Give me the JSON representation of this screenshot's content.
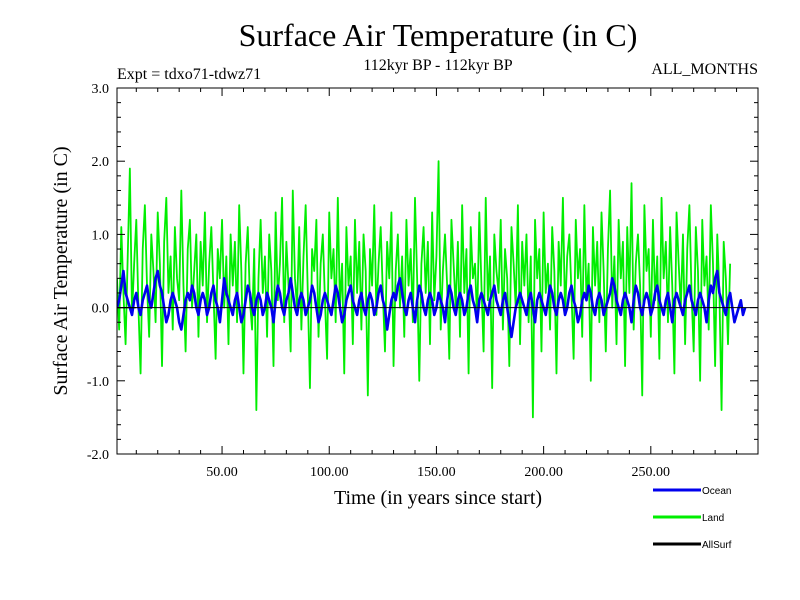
{
  "chart_data": {
    "type": "line",
    "title": "Surface Air Temperature (in C)",
    "subtitle_left": "Expt = tdxo71-tdwz71",
    "subtitle_center": "112kyr BP - 112kyr BP",
    "subtitle_right": "ALL_MONTHS",
    "xlabel": "Time (in years since start)",
    "ylabel": "Surface Air Temperature (in C)",
    "xlim": [
      1,
      300
    ],
    "ylim": [
      -2.0,
      3.0
    ],
    "x_ticks": [
      50,
      100,
      150,
      200,
      250
    ],
    "x_tick_labels": [
      "50.00",
      "100.00",
      "150.00",
      "200.00",
      "250.00"
    ],
    "y_ticks": [
      -2.0,
      -1.0,
      0.0,
      1.0,
      2.0,
      3.0
    ],
    "y_tick_labels": [
      "-2.0",
      "-1.0",
      "0.0",
      "1.0",
      "2.0",
      "3.0"
    ],
    "zero_line": 0.0,
    "series": [
      {
        "name": "Land",
        "color": "#00ee00",
        "x_start": 1,
        "x_step": 1,
        "values": [
          0.4,
          -0.3,
          1.1,
          0.2,
          -0.5,
          0.7,
          1.9,
          -0.1,
          0.6,
          1.2,
          0.0,
          -0.9,
          0.8,
          1.4,
          0.3,
          -0.4,
          1.0,
          0.5,
          -0.2,
          1.3,
          0.6,
          -0.8,
          0.9,
          1.5,
          0.2,
          0.7,
          -0.3,
          1.1,
          0.4,
          0.1,
          1.6,
          0.3,
          -0.6,
          0.8,
          1.2,
          0.0,
          0.5,
          1.0,
          -0.4,
          0.9,
          0.3,
          1.3,
          -0.2,
          0.6,
          1.1,
          0.2,
          -0.7,
          0.8,
          0.4,
          1.2,
          0.0,
          0.7,
          -0.5,
          1.0,
          0.3,
          0.9,
          -0.2,
          1.4,
          0.5,
          -0.9,
          0.6,
          1.1,
          0.1,
          -0.3,
          0.8,
          -1.4,
          0.4,
          1.2,
          0.2,
          0.7,
          -0.4,
          1.0,
          0.5,
          -0.8,
          1.3,
          0.1,
          0.6,
          1.5,
          -0.2,
          0.9,
          0.3,
          -0.6,
          1.6,
          0.4,
          0.0,
          1.1,
          -0.3,
          0.7,
          1.4,
          0.2,
          -1.1,
          0.8,
          0.5,
          1.2,
          -0.4,
          0.6,
          1.0,
          0.1,
          -0.7,
          1.3,
          0.4,
          0.8,
          -0.2,
          1.5,
          0.0,
          0.6,
          -0.9,
          1.1,
          0.3,
          0.7,
          -0.5,
          1.2,
          0.2,
          0.9,
          -0.3,
          1.0,
          0.5,
          -1.2,
          0.8,
          0.3,
          1.4,
          -0.1,
          0.6,
          1.1,
          0.2,
          -0.6,
          0.9,
          0.4,
          1.3,
          -0.8,
          0.5,
          1.0,
          0.0,
          0.7,
          -0.4,
          1.2,
          0.3,
          0.8,
          -0.2,
          1.5,
          0.4,
          -1.0,
          0.6,
          1.1,
          0.2,
          0.9,
          -0.5,
          1.3,
          0.1,
          0.7,
          2.0,
          -0.3,
          0.5,
          1.0,
          0.3,
          -0.7,
          1.2,
          0.6,
          0.0,
          0.9,
          -0.4,
          1.4,
          0.2,
          0.8,
          -0.9,
          1.1,
          0.4,
          0.6,
          -0.2,
          1.3,
          0.3,
          -0.6,
          1.5,
          0.1,
          0.7,
          -1.1,
          1.0,
          0.5,
          0.2,
          1.2,
          -0.3,
          0.8,
          0.4,
          -0.8,
          1.1,
          0.6,
          0.0,
          1.4,
          -0.5,
          0.9,
          0.3,
          1.0,
          -0.2,
          0.7,
          -1.5,
          1.2,
          0.4,
          0.8,
          -0.6,
          1.3,
          0.2,
          0.6,
          -0.3,
          1.1,
          0.5,
          -0.9,
          0.9,
          0.3,
          1.5,
          -0.1,
          0.7,
          1.0,
          0.2,
          -0.7,
          1.2,
          0.4,
          0.8,
          -0.4,
          1.4,
          0.1,
          0.6,
          -1.0,
          1.1,
          0.3,
          0.9,
          -0.2,
          1.3,
          0.5,
          -0.6,
          0.8,
          1.6,
          0.0,
          0.7,
          -0.5,
          1.2,
          0.4,
          0.9,
          -0.8,
          1.1,
          0.2,
          1.7,
          -0.3,
          0.6,
          1.0,
          0.3,
          -1.2,
          1.4,
          0.5,
          0.8,
          -0.4,
          1.2,
          0.1,
          0.7,
          -0.7,
          1.5,
          0.4,
          0.9,
          -0.2,
          1.1,
          0.3,
          -0.9,
          1.3,
          0.6,
          0.0,
          1.0,
          -0.5,
          0.8,
          1.4,
          0.2,
          -0.6,
          1.1,
          0.5,
          -1.0,
          1.2,
          0.3,
          0.7,
          -0.3,
          1.4,
          0.6,
          -0.8,
          1.0,
          0.2,
          -1.4,
          0.9,
          0.4,
          -0.5,
          0.6
        ]
      },
      {
        "name": "Ocean",
        "color": "#0000ee",
        "x_start": 1,
        "x_step": 1,
        "values": [
          0.0,
          0.1,
          0.3,
          0.5,
          0.2,
          0.1,
          0.0,
          -0.1,
          0.1,
          0.2,
          0.0,
          -0.1,
          0.1,
          0.2,
          0.3,
          0.1,
          0.0,
          0.2,
          0.4,
          0.5,
          0.3,
          0.2,
          0.0,
          -0.2,
          -0.1,
          0.1,
          0.2,
          0.1,
          0.0,
          -0.2,
          -0.3,
          -0.1,
          0.1,
          0.2,
          0.1,
          0.3,
          0.2,
          0.0,
          -0.1,
          0.1,
          0.2,
          0.1,
          -0.1,
          0.0,
          0.2,
          0.3,
          0.1,
          0.0,
          -0.2,
          0.1,
          0.4,
          0.2,
          0.1,
          0.0,
          -0.1,
          0.1,
          0.2,
          0.0,
          -0.2,
          -0.1,
          0.1,
          0.3,
          0.2,
          0.0,
          -0.1,
          0.1,
          0.2,
          0.1,
          -0.1,
          0.0,
          0.2,
          0.1,
          0.0,
          -0.2,
          0.1,
          0.3,
          0.2,
          0.0,
          -0.1,
          0.1,
          0.2,
          0.4,
          0.2,
          0.0,
          -0.1,
          0.1,
          0.2,
          0.1,
          -0.1,
          0.0,
          0.1,
          0.3,
          0.2,
          0.0,
          -0.2,
          -0.1,
          0.1,
          0.2,
          0.1,
          0.0,
          -0.1,
          0.1,
          0.3,
          0.2,
          0.0,
          -0.2,
          -0.1,
          0.1,
          0.2,
          0.3,
          0.1,
          0.0,
          -0.1,
          0.1,
          0.2,
          0.0,
          -0.1,
          0.1,
          0.2,
          0.1,
          -0.1,
          0.0,
          0.2,
          0.3,
          0.1,
          0.0,
          -0.3,
          -0.1,
          0.1,
          0.2,
          0.1,
          0.3,
          0.4,
          0.2,
          0.0,
          -0.1,
          0.1,
          0.2,
          0.0,
          -0.2,
          0.1,
          0.3,
          0.2,
          0.0,
          -0.1,
          0.1,
          0.2,
          0.1,
          -0.1,
          0.0,
          0.2,
          0.1,
          0.0,
          -0.2,
          0.1,
          0.3,
          0.2,
          0.0,
          -0.1,
          0.1,
          0.2,
          0.1,
          -0.1,
          0.0,
          0.2,
          0.3,
          0.1,
          0.0,
          -0.2,
          0.1,
          0.2,
          0.1,
          0.0,
          -0.1,
          0.1,
          0.2,
          0.3,
          0.1,
          0.0,
          -0.1,
          0.1,
          0.2,
          0.0,
          -0.2,
          -0.4,
          -0.2,
          0.0,
          0.1,
          0.2,
          0.1,
          0.0,
          -0.1,
          0.1,
          0.2,
          0.0,
          -0.2,
          0.1,
          0.2,
          0.1,
          0.0,
          -0.1,
          0.1,
          0.3,
          0.2,
          0.0,
          -0.1,
          0.1,
          0.2,
          0.1,
          -0.1,
          0.0,
          0.2,
          0.3,
          0.1,
          0.0,
          -0.2,
          -0.1,
          0.1,
          0.2,
          0.1,
          0.3,
          0.2,
          0.0,
          -0.1,
          0.1,
          0.2,
          0.1,
          -0.1,
          0.0,
          0.1,
          0.2,
          0.4,
          0.3,
          0.1,
          0.0,
          -0.1,
          0.1,
          0.2,
          0.1,
          0.0,
          -0.2,
          0.1,
          0.3,
          0.2,
          0.0,
          -0.1,
          0.1,
          0.2,
          0.1,
          -0.1,
          0.0,
          0.2,
          0.3,
          0.1,
          0.0,
          -0.1,
          0.1,
          0.2,
          0.0,
          -0.2,
          0.1,
          0.2,
          0.1,
          0.0,
          -0.1,
          0.1,
          0.2,
          0.3,
          0.1,
          0.0,
          -0.1,
          0.1,
          0.2,
          0.1,
          0.0,
          -0.2,
          0.1,
          0.3,
          0.2,
          0.4,
          0.5,
          0.2,
          0.1,
          0.0,
          -0.1,
          0.1,
          0.2,
          0.0,
          -0.2,
          -0.1,
          0.0,
          0.1,
          -0.1,
          0.0
        ]
      },
      {
        "name": "AllSurf",
        "color": "#000000",
        "x_start": 1,
        "x_step": 1,
        "values": [
          0.0,
          0.0,
          0.0,
          0.0,
          0.0,
          0.0,
          0.0,
          0.0,
          0.0,
          0.0
        ]
      }
    ],
    "legend": [
      {
        "label": "Ocean",
        "color": "#0000ee"
      },
      {
        "label": "Land",
        "color": "#00ee00"
      },
      {
        "label": "AllSurf",
        "color": "#000000"
      }
    ],
    "legend_position": "bottom-right",
    "grid": false
  }
}
